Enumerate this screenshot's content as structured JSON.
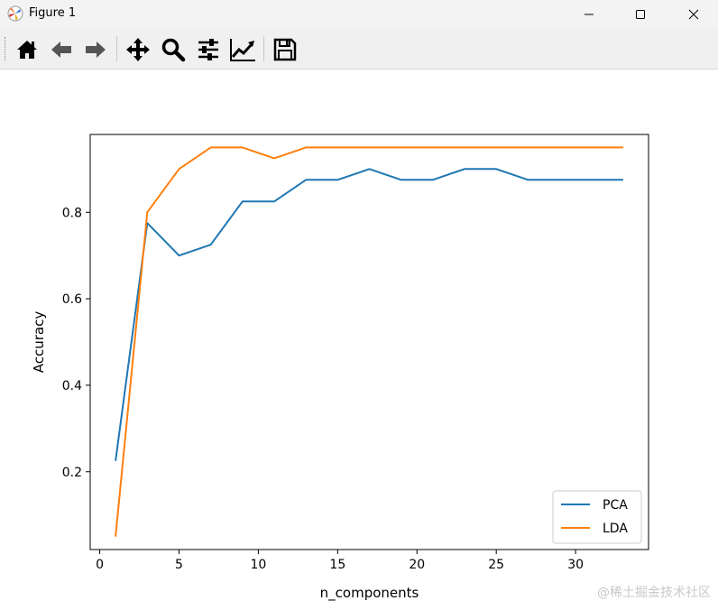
{
  "window": {
    "title": "Figure 1",
    "icons": [
      "matplotlib-icon",
      "minimize-icon",
      "maximize-icon",
      "close-icon"
    ]
  },
  "toolbar": {
    "buttons": [
      "home-icon",
      "back-icon",
      "forward-icon",
      "pan-icon",
      "zoom-icon",
      "configure-subplots-icon",
      "edit-axis-icon",
      "save-icon"
    ]
  },
  "chart_data": {
    "type": "line",
    "title": "",
    "xlabel": "n_components",
    "ylabel": "Accuracy",
    "xlim": [
      -0.6,
      34.6
    ],
    "ylim": [
      0.02,
      0.98
    ],
    "xticks": [
      0,
      5,
      10,
      15,
      20,
      25,
      30
    ],
    "yticks": [
      0.2,
      0.4,
      0.6,
      0.8
    ],
    "ytick_labels": [
      "0.2",
      "0.4",
      "0.6",
      "0.8"
    ],
    "grid": false,
    "legend_position": "lower right",
    "x": [
      1,
      3,
      5,
      7,
      9,
      11,
      13,
      15,
      17,
      19,
      21,
      23,
      25,
      27,
      29,
      31,
      33
    ],
    "series": [
      {
        "name": "PCA",
        "color": "#1f77b4",
        "values": [
          0.225,
          0.775,
          0.7,
          0.725,
          0.825,
          0.825,
          0.875,
          0.875,
          0.9,
          0.875,
          0.875,
          0.9,
          0.9,
          0.875,
          0.875,
          0.875,
          0.875
        ]
      },
      {
        "name": "LDA",
        "color": "#ff7f0e",
        "values": [
          0.05,
          0.8,
          0.9,
          0.95,
          0.95,
          0.925,
          0.95,
          0.95,
          0.95,
          0.95,
          0.95,
          0.95,
          0.95,
          0.95,
          0.95,
          0.95,
          0.95
        ]
      }
    ]
  },
  "watermark": "@稀土掘金技术社区"
}
